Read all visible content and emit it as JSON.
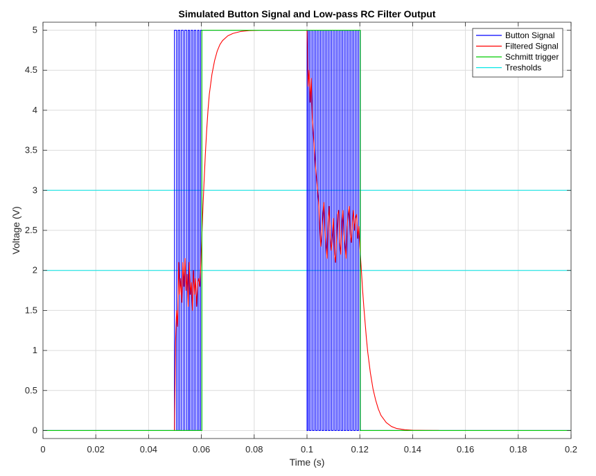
{
  "chart_data": {
    "type": "line",
    "title": "Simulated Button Signal and Low-pass RC Filter Output",
    "xlabel": "Time (s)",
    "ylabel": "Voltage (V)",
    "xlim": [
      0,
      0.2
    ],
    "ylim": [
      -0.1,
      5.1
    ],
    "x_ticks": [
      "0",
      "0.02",
      "0.04",
      "0.06",
      "0.08",
      "0.1",
      "0.12",
      "0.14",
      "0.16",
      "0.18",
      "0.2"
    ],
    "y_ticks": [
      "0",
      "0.5",
      "1",
      "1.5",
      "2",
      "2.5",
      "3",
      "3.5",
      "4",
      "4.5",
      "5"
    ],
    "grid": true,
    "legend_position": "top-right",
    "series": [
      {
        "name": "Button Signal",
        "color": "#0000ff",
        "x": [
          0,
          0.0498,
          0.0498,
          0.0506,
          0.0506,
          0.0512,
          0.0512,
          0.0518,
          0.0518,
          0.0524,
          0.0524,
          0.0531,
          0.0531,
          0.0537,
          0.0537,
          0.0544,
          0.0544,
          0.055,
          0.055,
          0.0555,
          0.0555,
          0.0561,
          0.0561,
          0.0567,
          0.0567,
          0.0573,
          0.0573,
          0.0579,
          0.0579,
          0.0586,
          0.0586,
          0.0591,
          0.0591,
          0.0597,
          0.0597,
          0.1,
          0.1,
          0.1004,
          0.1004,
          0.1009,
          0.1009,
          0.1015,
          0.1015,
          0.1021,
          0.1021,
          0.1027,
          0.1027,
          0.1033,
          0.1033,
          0.1039,
          0.1039,
          0.1045,
          0.1045,
          0.1051,
          0.1051,
          0.1057,
          0.1057,
          0.1063,
          0.1063,
          0.1069,
          0.1069,
          0.1075,
          0.1075,
          0.1081,
          0.1081,
          0.1087,
          0.1087,
          0.1093,
          0.1093,
          0.1099,
          0.1099,
          0.1105,
          0.1105,
          0.1111,
          0.1111,
          0.1117,
          0.1117,
          0.1123,
          0.1123,
          0.1129,
          0.1129,
          0.1135,
          0.1135,
          0.1141,
          0.1141,
          0.1147,
          0.1147,
          0.1153,
          0.1153,
          0.1159,
          0.1159,
          0.1165,
          0.1165,
          0.1171,
          0.1171,
          0.1177,
          0.1177,
          0.1183,
          0.1183,
          0.1189,
          0.1189,
          0.1195,
          0.1195,
          0.1201,
          0.1201,
          0.2
        ],
        "y": [
          0,
          0,
          5,
          5,
          0,
          0,
          5,
          5,
          0,
          0,
          5,
          5,
          0,
          0,
          5,
          5,
          0,
          0,
          5,
          5,
          0,
          0,
          5,
          5,
          0,
          0,
          5,
          5,
          0,
          0,
          5,
          5,
          0,
          0,
          5,
          5,
          0,
          0,
          5,
          5,
          0,
          0,
          5,
          5,
          0,
          0,
          5,
          5,
          0,
          0,
          5,
          5,
          0,
          0,
          5,
          5,
          0,
          0,
          5,
          5,
          0,
          0,
          5,
          5,
          0,
          0,
          5,
          5,
          0,
          0,
          5,
          5,
          0,
          0,
          5,
          5,
          0,
          0,
          5,
          5,
          0,
          0,
          5,
          5,
          0,
          0,
          5,
          5,
          0,
          0,
          5,
          5,
          0,
          0,
          5,
          5,
          0,
          0,
          5,
          5,
          0,
          0,
          5,
          5,
          0,
          0
        ]
      },
      {
        "name": "Filtered Signal",
        "color": "#ff0000",
        "x": [
          0.0498,
          0.0502,
          0.0506,
          0.051,
          0.0514,
          0.0518,
          0.0522,
          0.0526,
          0.053,
          0.0534,
          0.0538,
          0.0542,
          0.0546,
          0.055,
          0.0554,
          0.0558,
          0.0562,
          0.0566,
          0.057,
          0.0574,
          0.0578,
          0.0582,
          0.0586,
          0.059,
          0.0594,
          0.0598,
          0.0602,
          0.0606,
          0.061,
          0.0615,
          0.062,
          0.0625,
          0.063,
          0.064,
          0.065,
          0.066,
          0.067,
          0.068,
          0.07,
          0.072,
          0.075,
          0.078,
          0.082,
          0.086,
          0.09,
          0.1,
          0.1004,
          0.1008,
          0.1012,
          0.1016,
          0.102,
          0.1024,
          0.1028,
          0.1032,
          0.1036,
          0.104,
          0.1044,
          0.1048,
          0.1052,
          0.1056,
          0.106,
          0.1064,
          0.1068,
          0.1072,
          0.1076,
          0.108,
          0.1084,
          0.1088,
          0.1092,
          0.1096,
          0.11,
          0.1104,
          0.1108,
          0.1112,
          0.1116,
          0.112,
          0.1124,
          0.1128,
          0.1132,
          0.1136,
          0.114,
          0.1144,
          0.1148,
          0.1152,
          0.1156,
          0.116,
          0.1164,
          0.1168,
          0.1172,
          0.1176,
          0.118,
          0.1184,
          0.1188,
          0.1192,
          0.1196,
          0.12,
          0.1205,
          0.121,
          0.1215,
          0.122,
          0.1225,
          0.123,
          0.124,
          0.125,
          0.126,
          0.127,
          0.128,
          0.13,
          0.132,
          0.134,
          0.137,
          0.14,
          0.145,
          0.15
        ],
        "y": [
          0,
          1.1,
          1.5,
          1.3,
          2.1,
          1.7,
          1.9,
          1.6,
          2.1,
          1.8,
          2.15,
          1.75,
          1.95,
          1.55,
          2.1,
          1.7,
          1.85,
          1.5,
          2.0,
          1.7,
          1.9,
          1.55,
          1.85,
          1.9,
          1.8,
          2.1,
          2.45,
          2.8,
          3.1,
          3.45,
          3.75,
          4.0,
          4.2,
          4.45,
          4.62,
          4.74,
          4.82,
          4.87,
          4.93,
          4.96,
          4.985,
          4.995,
          5,
          5,
          5,
          5,
          4.3,
          4.5,
          4.1,
          4.4,
          3.9,
          3.7,
          3.5,
          3.3,
          3.15,
          3.0,
          2.85,
          2.55,
          2.3,
          2.45,
          2.7,
          2.85,
          2.5,
          2.3,
          2.15,
          2.6,
          2.8,
          2.4,
          2.25,
          2.45,
          2.65,
          2.2,
          2.1,
          2.4,
          2.7,
          2.75,
          2.35,
          2.2,
          2.6,
          2.75,
          2.45,
          2.3,
          2.15,
          2.55,
          2.7,
          2.8,
          2.45,
          2.35,
          2.6,
          2.75,
          2.5,
          2.65,
          2.7,
          2.4,
          2.55,
          2.3,
          2.05,
          1.78,
          1.55,
          1.35,
          1.15,
          0.98,
          0.72,
          0.52,
          0.38,
          0.27,
          0.19,
          0.1,
          0.05,
          0.025,
          0.01,
          0.004,
          0.001,
          0
        ]
      },
      {
        "name": "Schmitt trigger",
        "color": "#00cc00",
        "x": [
          0,
          0.0602,
          0.0602,
          0.1202,
          0.1202,
          0.2
        ],
        "y": [
          0,
          0,
          5,
          5,
          0,
          0
        ]
      },
      {
        "name": "Tresholds",
        "color": "#00e5e5",
        "lines": [
          2,
          3
        ]
      }
    ]
  }
}
